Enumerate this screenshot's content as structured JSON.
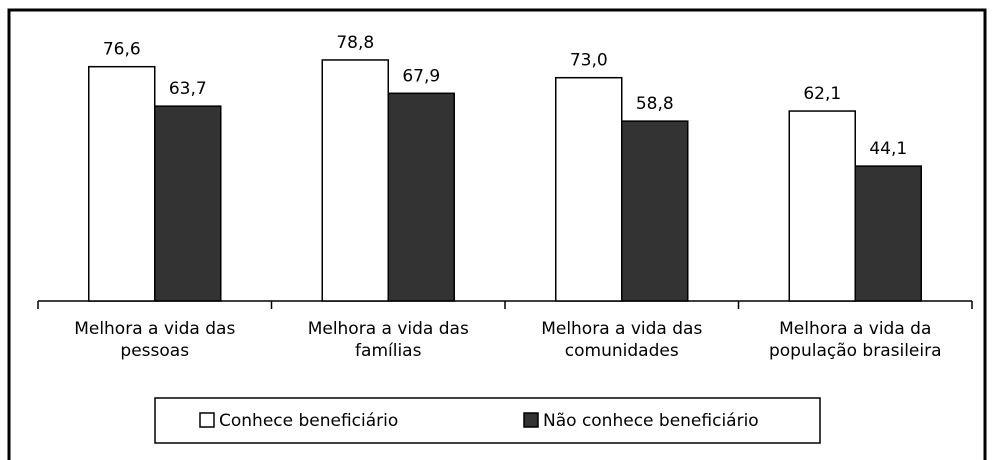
{
  "chart_data": {
    "type": "bar",
    "categories": [
      "Melhora a vida das pessoas",
      "Melhora a vida das famílias",
      "Melhora a vida das comunidades",
      "Melhora a vida da população brasileira"
    ],
    "series": [
      {
        "name": "Conhece beneficiário",
        "color": "#ffffff",
        "values": [
          76.6,
          78.8,
          73.0,
          62.1
        ],
        "value_labels": [
          "76,6",
          "78,8",
          "73,0",
          "62,1"
        ]
      },
      {
        "name": "Não conhece beneficiário",
        "color": "#333333",
        "values": [
          63.7,
          67.9,
          58.8,
          44.1
        ],
        "value_labels": [
          "63,7",
          "67,9",
          "58,8",
          "44,1"
        ]
      }
    ],
    "ylim": [
      0,
      90
    ],
    "legend": "bottom"
  }
}
